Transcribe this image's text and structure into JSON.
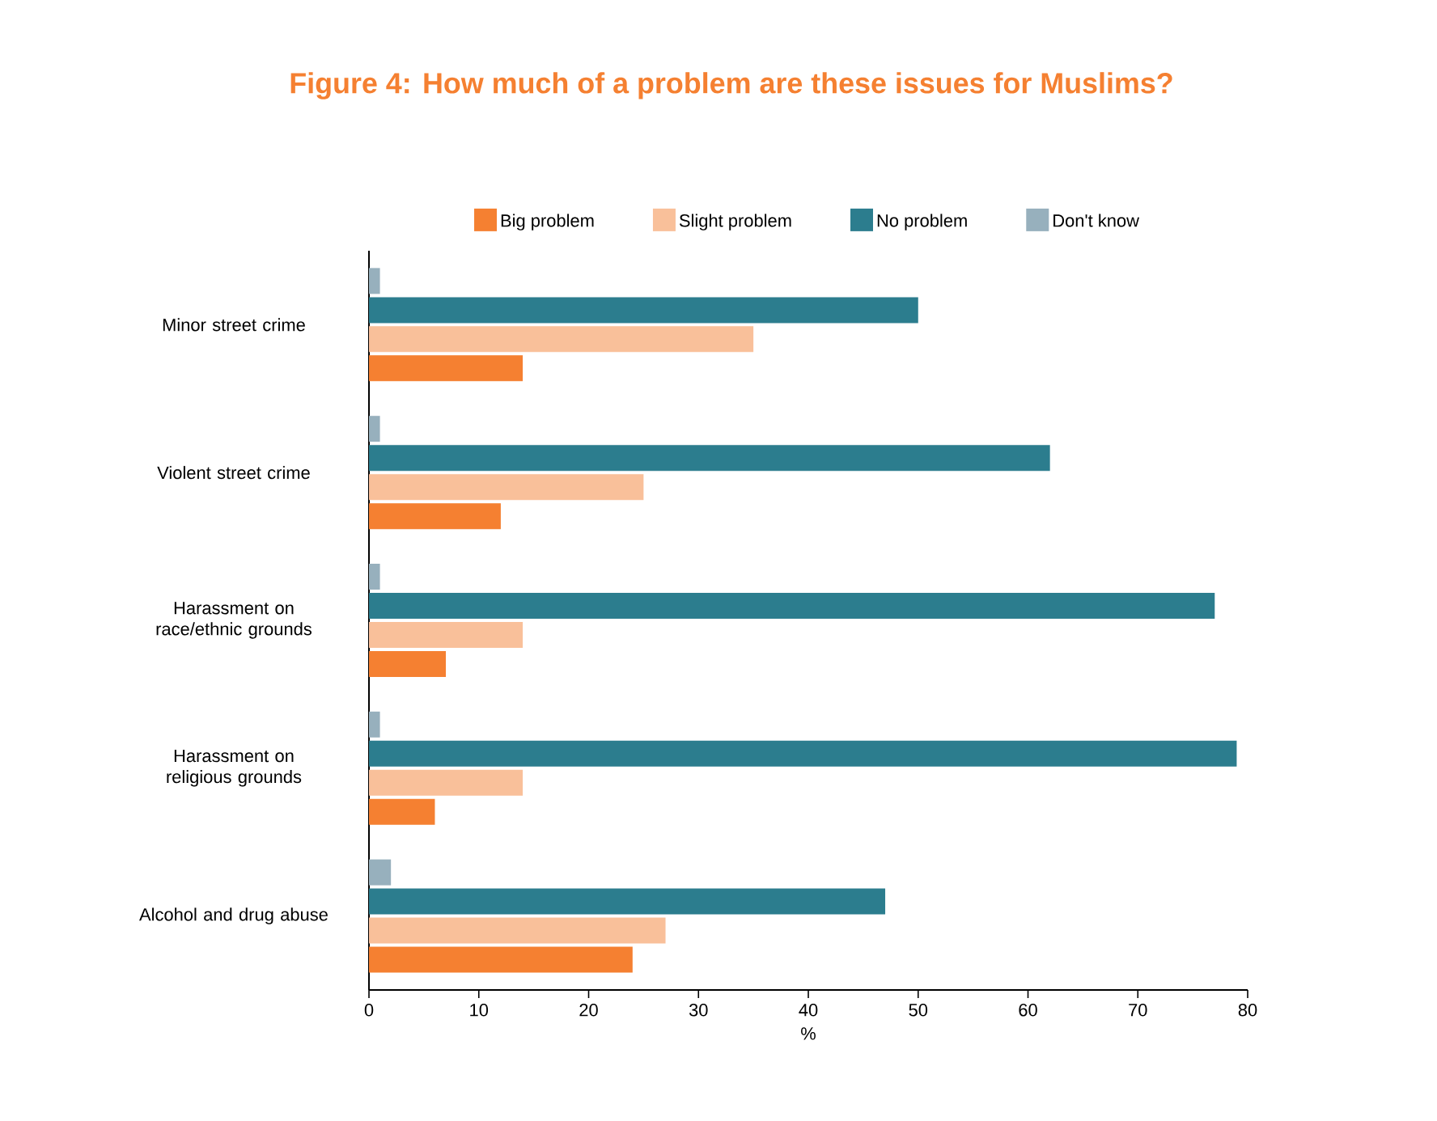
{
  "chart_data": {
    "type": "bar",
    "orientation": "horizontal",
    "title": "Figure 4: How much of a problem are these issues for Muslims?",
    "xlabel": "%",
    "categories": [
      "Minor street crime",
      "Violent street crime",
      "Harassment on race/ethnic grounds",
      "Harassment on religious grounds",
      "Alcohol and drug abuse"
    ],
    "series": [
      {
        "name": "Big problem",
        "color": "#f58031",
        "values": [
          14,
          12,
          7,
          6,
          24
        ]
      },
      {
        "name": "Slight problem",
        "color": "#f9c09a",
        "values": [
          35,
          25,
          14,
          14,
          27
        ]
      },
      {
        "name": "No problem",
        "color": "#2c7d8e",
        "values": [
          50,
          62,
          77,
          79,
          47
        ]
      },
      {
        "name": "Don't know",
        "color": "#97b0bd",
        "values": [
          1,
          1,
          1,
          1,
          2
        ]
      }
    ],
    "xlim": [
      0,
      80
    ],
    "xticks": [
      0,
      10,
      20,
      30,
      40,
      50,
      60,
      70,
      80
    ],
    "legend": "top"
  }
}
